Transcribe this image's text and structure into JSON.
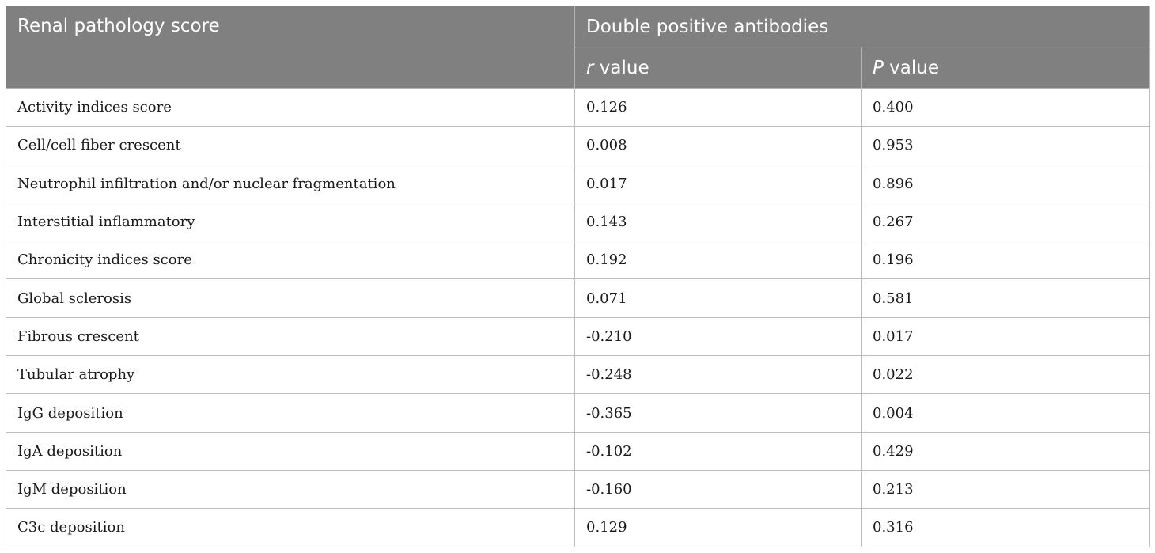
{
  "header": {
    "col1": "Renal pathology score",
    "group": "Double positive antibodies",
    "r_symbol": "r",
    "r_suffix": " value",
    "p_symbol": "P",
    "p_suffix": " value"
  },
  "rows": [
    {
      "label": "Activity indices score",
      "r": "0.126",
      "p": "0.400"
    },
    {
      "label": "Cell/cell fiber crescent",
      "r": "0.008",
      "p": "0.953"
    },
    {
      "label": "Neutrophil infiltration and/or nuclear fragmentation",
      "r": "0.017",
      "p": "0.896"
    },
    {
      "label": "Interstitial inflammatory",
      "r": "0.143",
      "p": "0.267"
    },
    {
      "label": "Chronicity indices score",
      "r": "0.192",
      "p": "0.196"
    },
    {
      "label": "Global sclerosis",
      "r": "0.071",
      "p": "0.581"
    },
    {
      "label": "Fibrous crescent",
      "r": "-0.210",
      "p": "0.017"
    },
    {
      "label": "Tubular atrophy",
      "r": "-0.248",
      "p": "0.022"
    },
    {
      "label": "IgG deposition",
      "r": "-0.365",
      "p": "0.004"
    },
    {
      "label": "IgA deposition",
      "r": "-0.102",
      "p": "0.429"
    },
    {
      "label": "IgM deposition",
      "r": "-0.160",
      "p": "0.213"
    },
    {
      "label": "C3c deposition",
      "r": "0.129",
      "p": "0.316"
    }
  ]
}
